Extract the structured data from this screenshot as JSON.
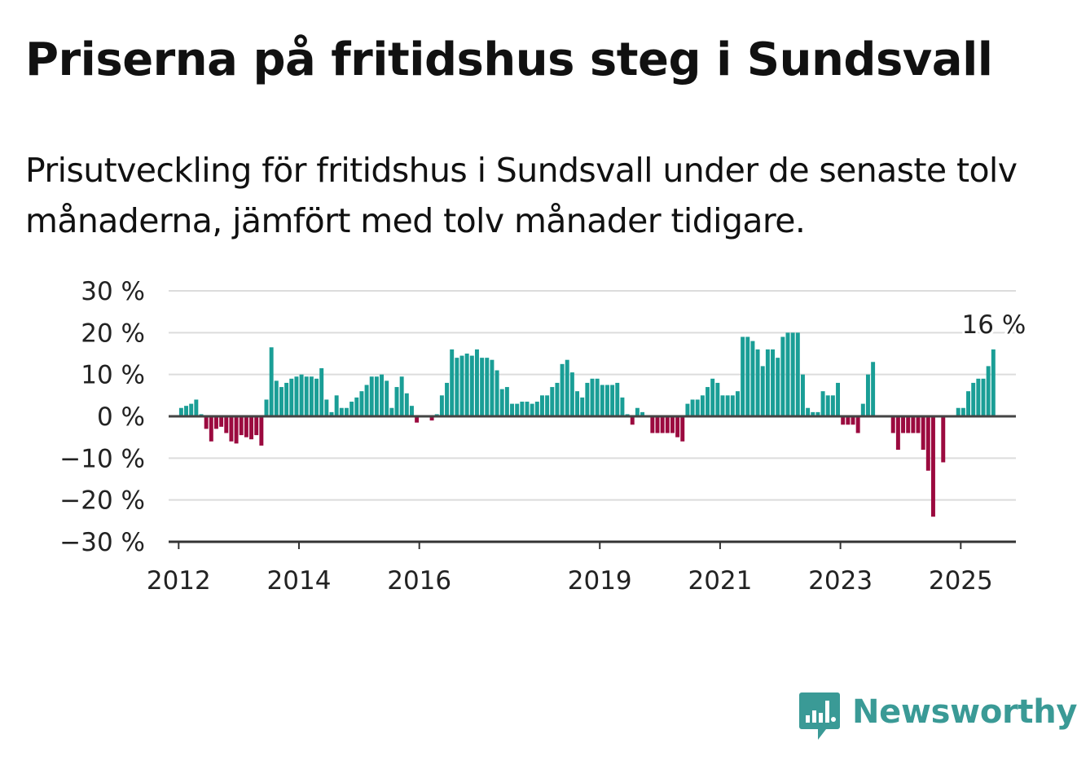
{
  "title": "Priserna på fritidshus steg i Sundsvall",
  "subtitle": "Prisutveckling för fritidshus i Sundsvall under de senaste tolv månaderna, jämfört med tolv månader tidigare.",
  "brand": {
    "name": "Newsworthy",
    "icon": "bar-chart-icon",
    "color": "#3a9a96"
  },
  "colors": {
    "positive": "#1a9e96",
    "negative": "#9b0a3f",
    "grid": "#dcdcdc",
    "zero_line": "#444444"
  },
  "chart_data": {
    "type": "bar",
    "title": "Priserna på fritidshus steg i Sundsvall",
    "xlabel": "",
    "ylabel": "",
    "ylim": [
      -30,
      30
    ],
    "y_ticks": [
      30,
      20,
      10,
      0,
      -10,
      -20,
      -30
    ],
    "y_tick_labels": [
      "30 %",
      "20 %",
      "10 %",
      "0 %",
      "−10 %",
      "−20 %",
      "−30 %"
    ],
    "x_tick_labels": [
      "2012",
      "2014",
      "2016",
      "2019",
      "2021",
      "2023",
      "2025"
    ],
    "grid": true,
    "x_start": "2011-11",
    "x_end": "2025-12",
    "last_value_label": "16 %",
    "series": [
      {
        "values": [
          {
            "month": "2012-01",
            "value": 2
          },
          {
            "month": "2012-02",
            "value": 2.5
          },
          {
            "month": "2012-03",
            "value": 3
          },
          {
            "month": "2012-04",
            "value": 4
          },
          {
            "month": "2012-05",
            "value": 0.5
          },
          {
            "month": "2012-06",
            "value": -3
          },
          {
            "month": "2012-07",
            "value": -6
          },
          {
            "month": "2012-08",
            "value": -3
          },
          {
            "month": "2012-09",
            "value": -2.5
          },
          {
            "month": "2012-10",
            "value": -4
          },
          {
            "month": "2012-11",
            "value": -6
          },
          {
            "month": "2012-12",
            "value": -6.5
          },
          {
            "month": "2013-01",
            "value": -4.5
          },
          {
            "month": "2013-02",
            "value": -5
          },
          {
            "month": "2013-03",
            "value": -5.5
          },
          {
            "month": "2013-04",
            "value": -4.5
          },
          {
            "month": "2013-05",
            "value": -7
          },
          {
            "month": "2013-06",
            "value": 4
          },
          {
            "month": "2013-07",
            "value": 16.5
          },
          {
            "month": "2013-08",
            "value": 8.5
          },
          {
            "month": "2013-09",
            "value": 7
          },
          {
            "month": "2013-10",
            "value": 8
          },
          {
            "month": "2013-11",
            "value": 9
          },
          {
            "month": "2013-12",
            "value": 9.5
          },
          {
            "month": "2014-01",
            "value": 10
          },
          {
            "month": "2014-02",
            "value": 9.5
          },
          {
            "month": "2014-03",
            "value": 9.5
          },
          {
            "month": "2014-04",
            "value": 9
          },
          {
            "month": "2014-05",
            "value": 11.5
          },
          {
            "month": "2014-06",
            "value": 4
          },
          {
            "month": "2014-07",
            "value": 1
          },
          {
            "month": "2014-08",
            "value": 5
          },
          {
            "month": "2014-09",
            "value": 2
          },
          {
            "month": "2014-10",
            "value": 2
          },
          {
            "month": "2014-11",
            "value": 3.5
          },
          {
            "month": "2014-12",
            "value": 4.5
          },
          {
            "month": "2015-01",
            "value": 6
          },
          {
            "month": "2015-02",
            "value": 7.5
          },
          {
            "month": "2015-03",
            "value": 9.5
          },
          {
            "month": "2015-04",
            "value": 9.5
          },
          {
            "month": "2015-05",
            "value": 10
          },
          {
            "month": "2015-06",
            "value": 8.5
          },
          {
            "month": "2015-07",
            "value": 2
          },
          {
            "month": "2015-08",
            "value": 7
          },
          {
            "month": "2015-09",
            "value": 9.5
          },
          {
            "month": "2015-10",
            "value": 5.5
          },
          {
            "month": "2015-11",
            "value": 2.5
          },
          {
            "month": "2015-12",
            "value": -1.5
          },
          {
            "month": "2016-03",
            "value": -1
          },
          {
            "month": "2016-04",
            "value": 0.5
          },
          {
            "month": "2016-05",
            "value": 5
          },
          {
            "month": "2016-06",
            "value": 8
          },
          {
            "month": "2016-07",
            "value": 16
          },
          {
            "month": "2016-08",
            "value": 14
          },
          {
            "month": "2016-09",
            "value": 14.5
          },
          {
            "month": "2016-10",
            "value": 15
          },
          {
            "month": "2016-11",
            "value": 14.5
          },
          {
            "month": "2016-12",
            "value": 16
          },
          {
            "month": "2017-01",
            "value": 14
          },
          {
            "month": "2017-02",
            "value": 14
          },
          {
            "month": "2017-03",
            "value": 13.5
          },
          {
            "month": "2017-04",
            "value": 11
          },
          {
            "month": "2017-05",
            "value": 6.5
          },
          {
            "month": "2017-06",
            "value": 7
          },
          {
            "month": "2017-07",
            "value": 3
          },
          {
            "month": "2017-08",
            "value": 3
          },
          {
            "month": "2017-09",
            "value": 3.5
          },
          {
            "month": "2017-10",
            "value": 3.5
          },
          {
            "month": "2017-11",
            "value": 3
          },
          {
            "month": "2017-12",
            "value": 3.5
          },
          {
            "month": "2018-01",
            "value": 5
          },
          {
            "month": "2018-02",
            "value": 5
          },
          {
            "month": "2018-03",
            "value": 7
          },
          {
            "month": "2018-04",
            "value": 8
          },
          {
            "month": "2018-05",
            "value": 12.5
          },
          {
            "month": "2018-06",
            "value": 13.5
          },
          {
            "month": "2018-07",
            "value": 10.5
          },
          {
            "month": "2018-08",
            "value": 6
          },
          {
            "month": "2018-09",
            "value": 4.5
          },
          {
            "month": "2018-10",
            "value": 8
          },
          {
            "month": "2018-11",
            "value": 9
          },
          {
            "month": "2018-12",
            "value": 9
          },
          {
            "month": "2019-01",
            "value": 7.5
          },
          {
            "month": "2019-02",
            "value": 7.5
          },
          {
            "month": "2019-03",
            "value": 7.5
          },
          {
            "month": "2019-04",
            "value": 8
          },
          {
            "month": "2019-05",
            "value": 4.5
          },
          {
            "month": "2019-06",
            "value": 0.5
          },
          {
            "month": "2019-07",
            "value": -2
          },
          {
            "month": "2019-08",
            "value": 2
          },
          {
            "month": "2019-09",
            "value": 1
          },
          {
            "month": "2019-11",
            "value": -4
          },
          {
            "month": "2019-12",
            "value": -4
          },
          {
            "month": "2020-01",
            "value": -4
          },
          {
            "month": "2020-02",
            "value": -4
          },
          {
            "month": "2020-03",
            "value": -4
          },
          {
            "month": "2020-04",
            "value": -5
          },
          {
            "month": "2020-05",
            "value": -6
          },
          {
            "month": "2020-06",
            "value": 3
          },
          {
            "month": "2020-07",
            "value": 4
          },
          {
            "month": "2020-08",
            "value": 4
          },
          {
            "month": "2020-09",
            "value": 5
          },
          {
            "month": "2020-10",
            "value": 7
          },
          {
            "month": "2020-11",
            "value": 9
          },
          {
            "month": "2020-12",
            "value": 8
          },
          {
            "month": "2021-01",
            "value": 5
          },
          {
            "month": "2021-02",
            "value": 5
          },
          {
            "month": "2021-03",
            "value": 5
          },
          {
            "month": "2021-04",
            "value": 6
          },
          {
            "month": "2021-05",
            "value": 19
          },
          {
            "month": "2021-06",
            "value": 19
          },
          {
            "month": "2021-07",
            "value": 18
          },
          {
            "month": "2021-08",
            "value": 16
          },
          {
            "month": "2021-09",
            "value": 12
          },
          {
            "month": "2021-10",
            "value": 16
          },
          {
            "month": "2021-11",
            "value": 16
          },
          {
            "month": "2021-12",
            "value": 14
          },
          {
            "month": "2022-01",
            "value": 19
          },
          {
            "month": "2022-02",
            "value": 20
          },
          {
            "month": "2022-03",
            "value": 20
          },
          {
            "month": "2022-04",
            "value": 20
          },
          {
            "month": "2022-05",
            "value": 10
          },
          {
            "month": "2022-06",
            "value": 2
          },
          {
            "month": "2022-07",
            "value": 1
          },
          {
            "month": "2022-08",
            "value": 1
          },
          {
            "month": "2022-09",
            "value": 6
          },
          {
            "month": "2022-10",
            "value": 5
          },
          {
            "month": "2022-11",
            "value": 5
          },
          {
            "month": "2022-12",
            "value": 8
          },
          {
            "month": "2023-01",
            "value": -2
          },
          {
            "month": "2023-02",
            "value": -2
          },
          {
            "month": "2023-03",
            "value": -2
          },
          {
            "month": "2023-04",
            "value": -4
          },
          {
            "month": "2023-05",
            "value": 3
          },
          {
            "month": "2023-06",
            "value": 10
          },
          {
            "month": "2023-07",
            "value": 13
          },
          {
            "month": "2023-11",
            "value": -4
          },
          {
            "month": "2023-12",
            "value": -8
          },
          {
            "month": "2024-01",
            "value": -4
          },
          {
            "month": "2024-02",
            "value": -4
          },
          {
            "month": "2024-03",
            "value": -4
          },
          {
            "month": "2024-04",
            "value": -4
          },
          {
            "month": "2024-05",
            "value": -8
          },
          {
            "month": "2024-06",
            "value": -13
          },
          {
            "month": "2024-07",
            "value": -24
          },
          {
            "month": "2024-09",
            "value": -11
          },
          {
            "month": "2024-12",
            "value": 2
          },
          {
            "month": "2025-01",
            "value": 2
          },
          {
            "month": "2025-02",
            "value": 6
          },
          {
            "month": "2025-03",
            "value": 8
          },
          {
            "month": "2025-04",
            "value": 9
          },
          {
            "month": "2025-05",
            "value": 9
          },
          {
            "month": "2025-06",
            "value": 12
          },
          {
            "month": "2025-07",
            "value": 16
          }
        ]
      }
    ]
  }
}
